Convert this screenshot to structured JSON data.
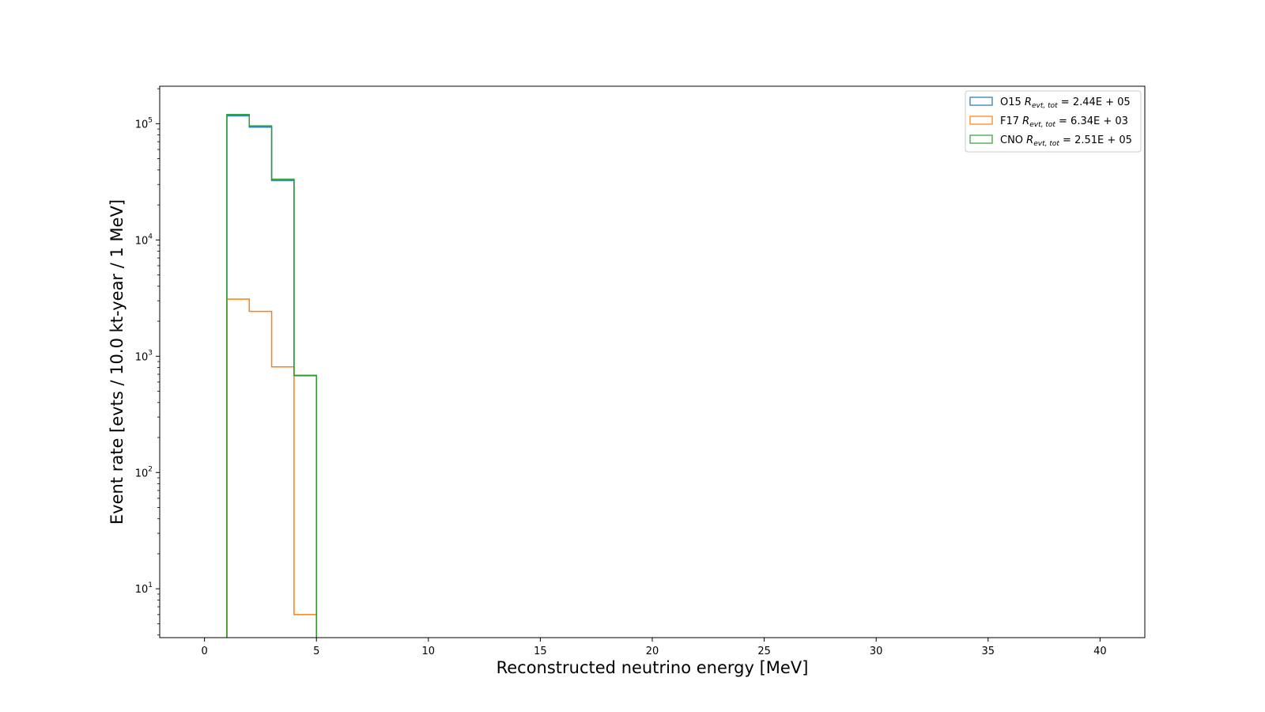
{
  "chart_data": {
    "type": "histogram",
    "xlabel": "Reconstructed neutrino energy [MeV]",
    "ylabel": "Event rate [evts / 10.0 kt-year / 1 MeV]",
    "yscale": "log",
    "xlim": [
      -2,
      42
    ],
    "ylim": [
      3.8,
      210000
    ],
    "x_ticks": [
      0,
      5,
      10,
      15,
      20,
      25,
      30,
      35,
      40
    ],
    "y_ticks": [
      {
        "value": 10,
        "base": "10",
        "exp": "1"
      },
      {
        "value": 100,
        "base": "10",
        "exp": "2"
      },
      {
        "value": 1000,
        "base": "10",
        "exp": "3"
      },
      {
        "value": 10000,
        "base": "10",
        "exp": "4"
      },
      {
        "value": 100000,
        "base": "10",
        "exp": "5"
      }
    ],
    "bin_edges": [
      1,
      2,
      3,
      4,
      5
    ],
    "grid": false,
    "legend_position": "top-right",
    "series": [
      {
        "name": "O15",
        "rate_label": "R",
        "rate_sub": "evt, tot",
        "rate_value": "2.44E + 05",
        "color": "#1f77b4",
        "values": [
          117000,
          93500,
          32500,
          680
        ]
      },
      {
        "name": "F17",
        "rate_label": "R",
        "rate_sub": "evt, tot",
        "rate_value": "6.34E + 03",
        "color": "#ff7f0e",
        "values": [
          3100,
          2430,
          810,
          6
        ]
      },
      {
        "name": "CNO",
        "rate_label": "R",
        "rate_sub": "evt, tot",
        "rate_value": "2.51E + 05",
        "color": "#2ca02c",
        "values": [
          120000,
          95800,
          33300,
          686
        ]
      }
    ]
  }
}
